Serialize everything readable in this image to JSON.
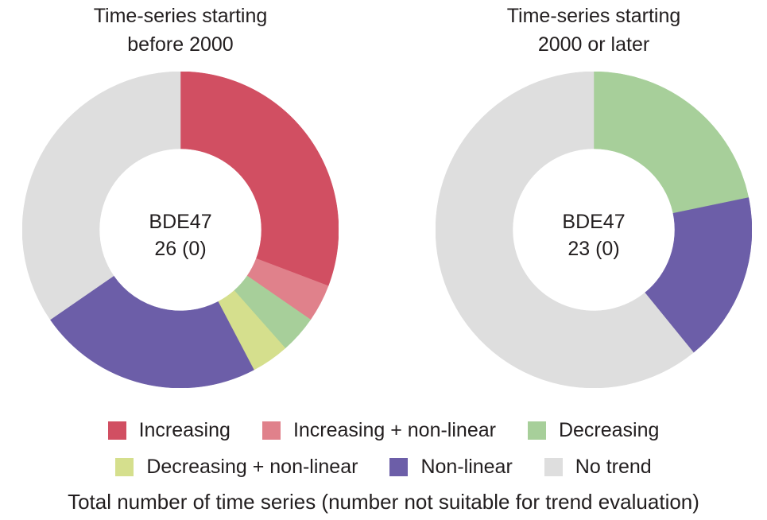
{
  "figure": {
    "caption": "Total number of time series (number not suitable for trend evaluation)"
  },
  "chart_data": [
    {
      "type": "donut",
      "title_lines": [
        "Time-series starting",
        "before 2000"
      ],
      "center_label": "BDE47",
      "center_value": "26 (0)",
      "total_series": 26,
      "not_suitable": 0,
      "start_angle_deg": 0,
      "direction": "clockwise",
      "slices": [
        {
          "label": "Increasing",
          "value": 8,
          "color": "#d14f62"
        },
        {
          "label": "Increasing + non-linear",
          "value": 1,
          "color": "#e0818b"
        },
        {
          "label": "Decreasing",
          "value": 1,
          "color": "#a7cf9a"
        },
        {
          "label": "Decreasing + non-linear",
          "value": 1,
          "color": "#d5df8d"
        },
        {
          "label": "Non-linear",
          "value": 6,
          "color": "#6c5ea8"
        },
        {
          "label": "No trend",
          "value": 9,
          "color": "#dedede"
        }
      ]
    },
    {
      "type": "donut",
      "title_lines": [
        "Time-series starting",
        "2000 or later"
      ],
      "center_label": "BDE47",
      "center_value": "23 (0)",
      "total_series": 23,
      "not_suitable": 0,
      "start_angle_deg": 0,
      "direction": "clockwise",
      "slices": [
        {
          "label": "Increasing",
          "value": 0,
          "color": "#d14f62"
        },
        {
          "label": "Increasing + non-linear",
          "value": 0,
          "color": "#e0818b"
        },
        {
          "label": "Decreasing",
          "value": 5,
          "color": "#a7cf9a"
        },
        {
          "label": "Decreasing + non-linear",
          "value": 0,
          "color": "#d5df8d"
        },
        {
          "label": "Non-linear",
          "value": 4,
          "color": "#6c5ea8"
        },
        {
          "label": "No trend",
          "value": 14,
          "color": "#dedede"
        }
      ]
    }
  ],
  "legend": {
    "rows": [
      [
        {
          "label": "Increasing",
          "color": "#d14f62"
        },
        {
          "label": "Increasing + non-linear",
          "color": "#e0818b"
        },
        {
          "label": "Decreasing",
          "color": "#a7cf9a"
        }
      ],
      [
        {
          "label": "Decreasing + non-linear",
          "color": "#d5df8d"
        },
        {
          "label": "Non-linear",
          "color": "#6c5ea8"
        },
        {
          "label": "No trend",
          "color": "#dedede"
        }
      ]
    ]
  }
}
